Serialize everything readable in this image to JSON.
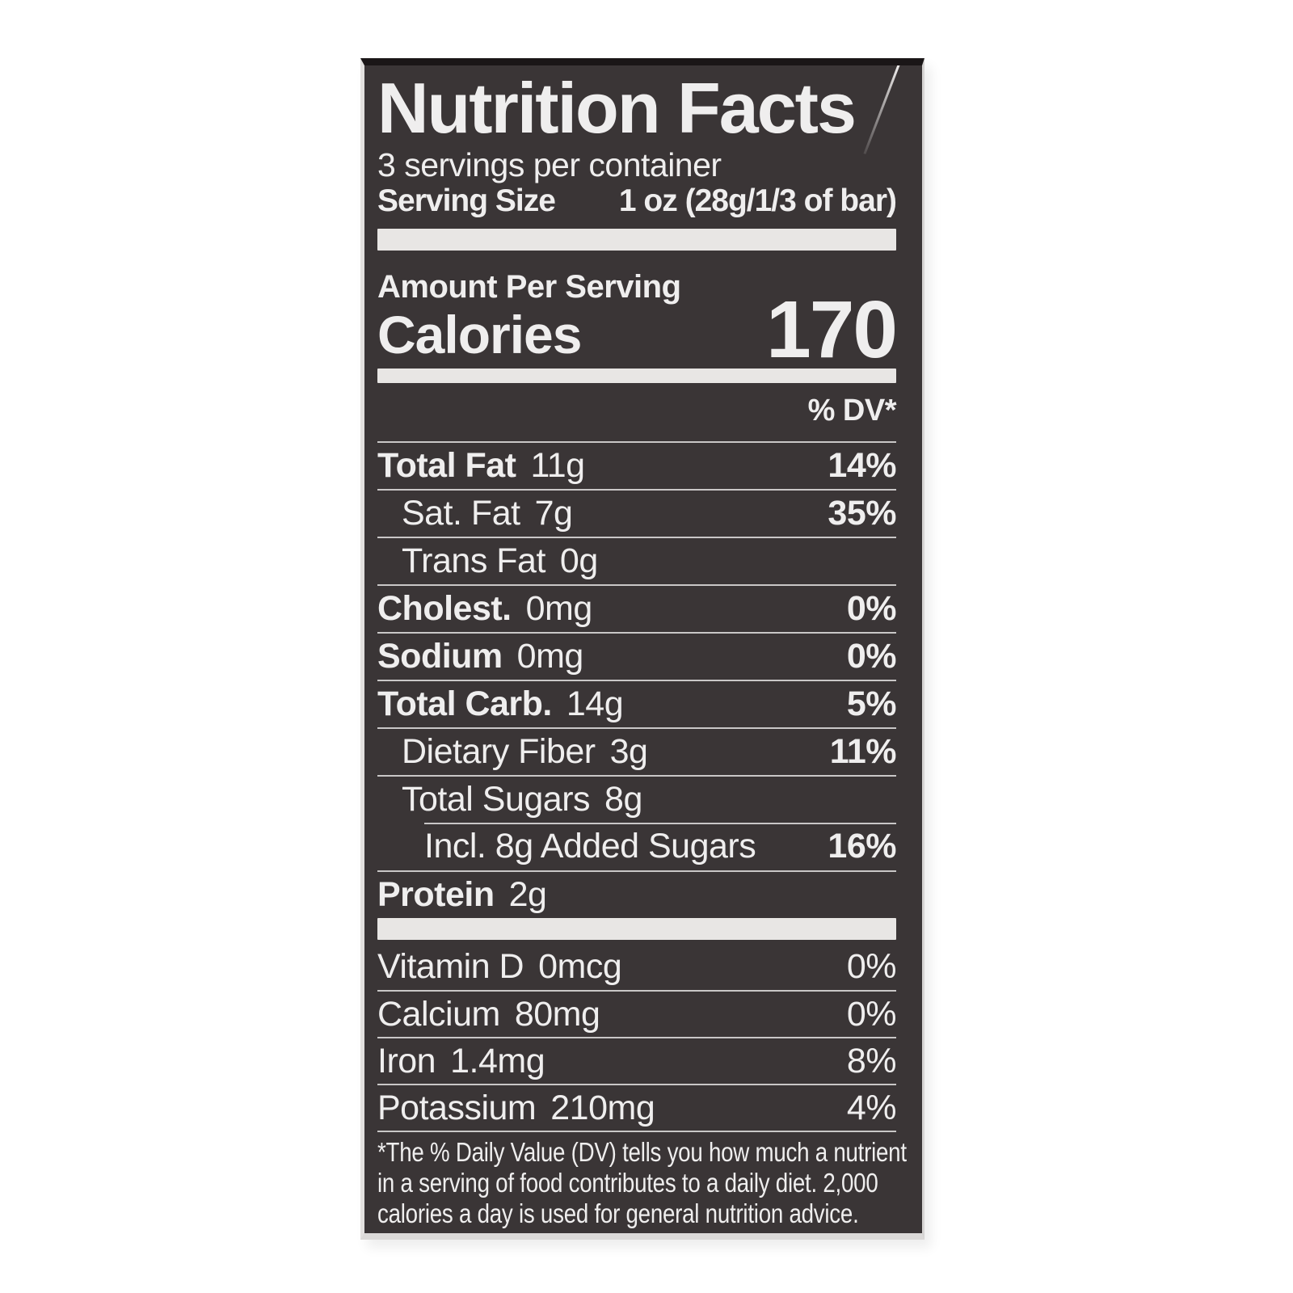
{
  "page": {
    "background_color": "#ffffff"
  },
  "label": {
    "background_color": "#3a3536",
    "text_color": "#efeeee",
    "divider_color": "#e8e6e4",
    "hairline_color": "#c9c7c7",
    "title": "Nutrition Facts",
    "servings_per_container": "3 servings per container",
    "serving_size_label": "Serving Size",
    "serving_size_value": "1 oz (28g/1/3 of bar)",
    "amount_per_serving_label": "Amount Per Serving",
    "calories_label": "Calories",
    "calories_value": "170",
    "dv_column_header": "% DV*"
  },
  "nutrients": [
    {
      "label": "Total Fat",
      "value": "11g",
      "dv": "14%"
    },
    {
      "label": "Sat. Fat",
      "value": "7g",
      "dv": "35%"
    },
    {
      "label": "Trans Fat",
      "value": "0g",
      "dv": ""
    },
    {
      "label": "Cholest.",
      "value": "0mg",
      "dv": "0%"
    },
    {
      "label": "Sodium",
      "value": "0mg",
      "dv": "0%"
    },
    {
      "label": "Total Carb.",
      "value": "14g",
      "dv": "5%"
    },
    {
      "label": "Dietary Fiber",
      "value": "3g",
      "dv": "11%"
    },
    {
      "label": "Total Sugars",
      "value": "8g",
      "dv": ""
    },
    {
      "label": "Incl. 8g Added Sugars",
      "value": "",
      "dv": "16%"
    },
    {
      "label": "Protein",
      "value": "2g",
      "dv": ""
    }
  ],
  "vitamins": [
    {
      "label": "Vitamin D",
      "value": "0mcg",
      "dv": "0%"
    },
    {
      "label": "Calcium",
      "value": "80mg",
      "dv": "0%"
    },
    {
      "label": "Iron",
      "value": "1.4mg",
      "dv": "8%"
    },
    {
      "label": "Potassium",
      "value": "210mg",
      "dv": "4%"
    }
  ],
  "footnote": {
    "line1": "*The % Daily Value (DV) tells you how much a nutrient",
    "line2": "in a serving of food contributes to a daily diet. 2,000",
    "line3": "calories a day is used for general nutrition advice."
  }
}
